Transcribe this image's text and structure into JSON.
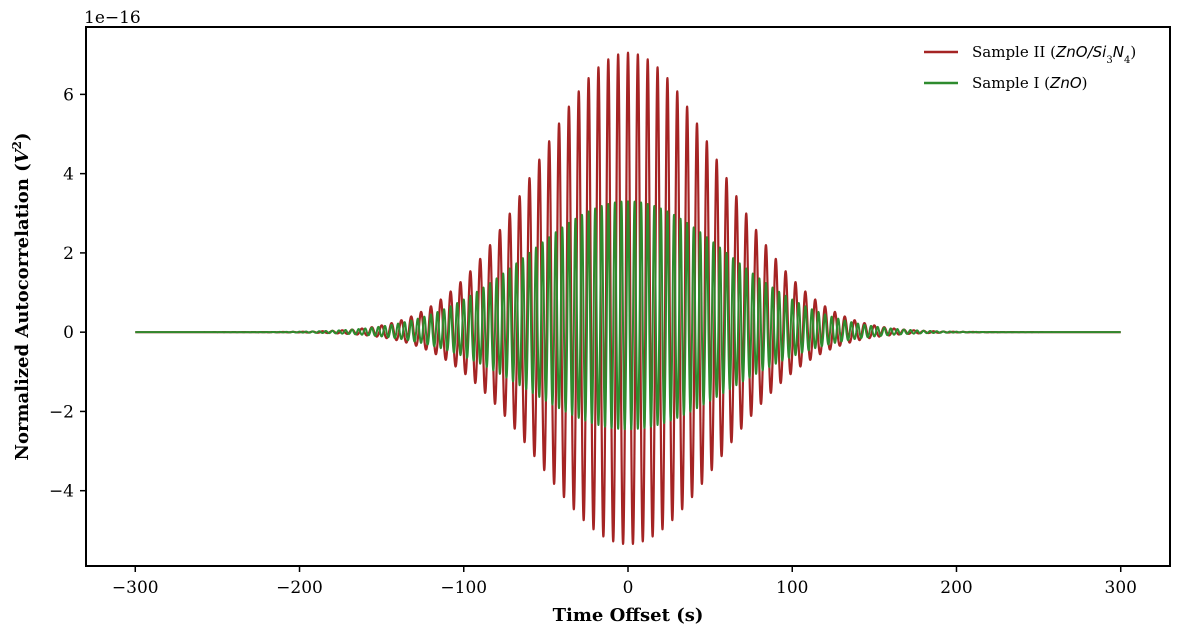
{
  "chart_data": {
    "type": "line",
    "xlabel": "Time Offset (s)",
    "ylabel_parts": {
      "base": "Normalized Autocorrelation (",
      "var": "V",
      "sup": "2",
      "close": ")"
    },
    "offset_text": "1e−16",
    "xlim": [
      -330,
      330
    ],
    "ylim": [
      -5.9,
      7.7
    ],
    "x_ticks": [
      -300,
      -200,
      -100,
      0,
      100,
      200,
      300
    ],
    "x_tick_labels": [
      "−300",
      "−200",
      "−100",
      "0",
      "100",
      "200",
      "300"
    ],
    "y_ticks": [
      -4,
      -2,
      0,
      2,
      4,
      6
    ],
    "y_tick_labels": [
      "−4",
      "−2",
      "0",
      "2",
      "4",
      "6"
    ],
    "legend_position": "top-right",
    "series": [
      {
        "name": "Sample II (ZnO/Si3N4)",
        "legend_parts": {
          "prefix": "Sample II (",
          "m1": "ZnO",
          "slash": "/",
          "m2": "Si",
          "sub1": "3",
          "m3": "N",
          "sub2": "4",
          "suffix": ")"
        },
        "color": "#a52424",
        "x_range": [
          -300,
          300
        ],
        "peak_max": 7.05,
        "peak_min": -5.35,
        "period": 6,
        "envelope_sigma": 55
      },
      {
        "name": "Sample I (ZnO)",
        "legend_parts": {
          "prefix": "Sample I (",
          "m1": "ZnO",
          "suffix": ")"
        },
        "color": "#2e8b2e",
        "x_range": [
          -300,
          300
        ],
        "peak_max": 3.3,
        "peak_min": -2.45,
        "period": 4,
        "envelope_sigma": 60
      }
    ]
  }
}
